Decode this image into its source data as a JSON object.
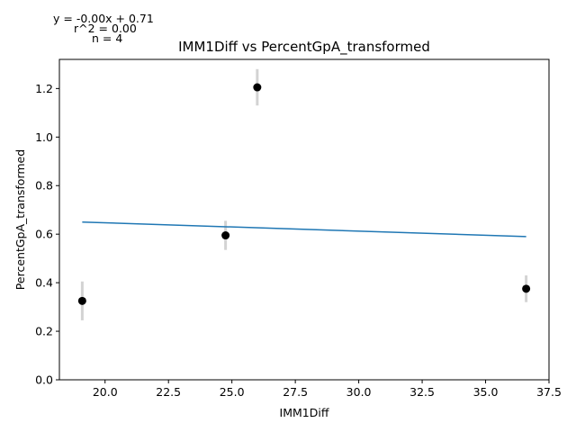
{
  "chart_data": {
    "type": "scatter",
    "title": "IMM1Diff vs PercentGpA_transformed",
    "xlabel": "IMM1Diff",
    "ylabel": "PercentGpA_transformed",
    "xlim": [
      18.2,
      37.5
    ],
    "ylim": [
      0.0,
      1.32
    ],
    "x_ticks": [
      20.0,
      22.5,
      25.0,
      27.5,
      30.0,
      32.5,
      35.0,
      37.5
    ],
    "x_tick_labels": [
      "20.0",
      "22.5",
      "25.0",
      "27.5",
      "30.0",
      "32.5",
      "35.0",
      "37.5"
    ],
    "y_ticks": [
      0.0,
      0.2,
      0.4,
      0.6,
      0.8,
      1.0,
      1.2
    ],
    "y_tick_labels": [
      "0.0",
      "0.2",
      "0.4",
      "0.6",
      "0.8",
      "1.0",
      "1.2"
    ],
    "points": [
      {
        "x": 19.1,
        "y": 0.325,
        "err_low": 0.245,
        "err_high": 0.405
      },
      {
        "x": 24.75,
        "y": 0.595,
        "err_low": 0.535,
        "err_high": 0.655
      },
      {
        "x": 26.0,
        "y": 1.205,
        "err_low": 1.13,
        "err_high": 1.28
      },
      {
        "x": 36.6,
        "y": 0.375,
        "err_low": 0.32,
        "err_high": 0.43
      }
    ],
    "fit_line": {
      "x": [
        19.1,
        36.6
      ],
      "y": [
        0.65,
        0.59
      ]
    },
    "annotations": {
      "equation": "y = -0.00x + 0.71",
      "r2": "r^2 = 0.00",
      "n": "n = 4"
    },
    "colors": {
      "point": "#000000",
      "errorbar": "#d3d3d3",
      "fit": "#1f77b4",
      "axes": "#000000"
    },
    "grid": false
  }
}
